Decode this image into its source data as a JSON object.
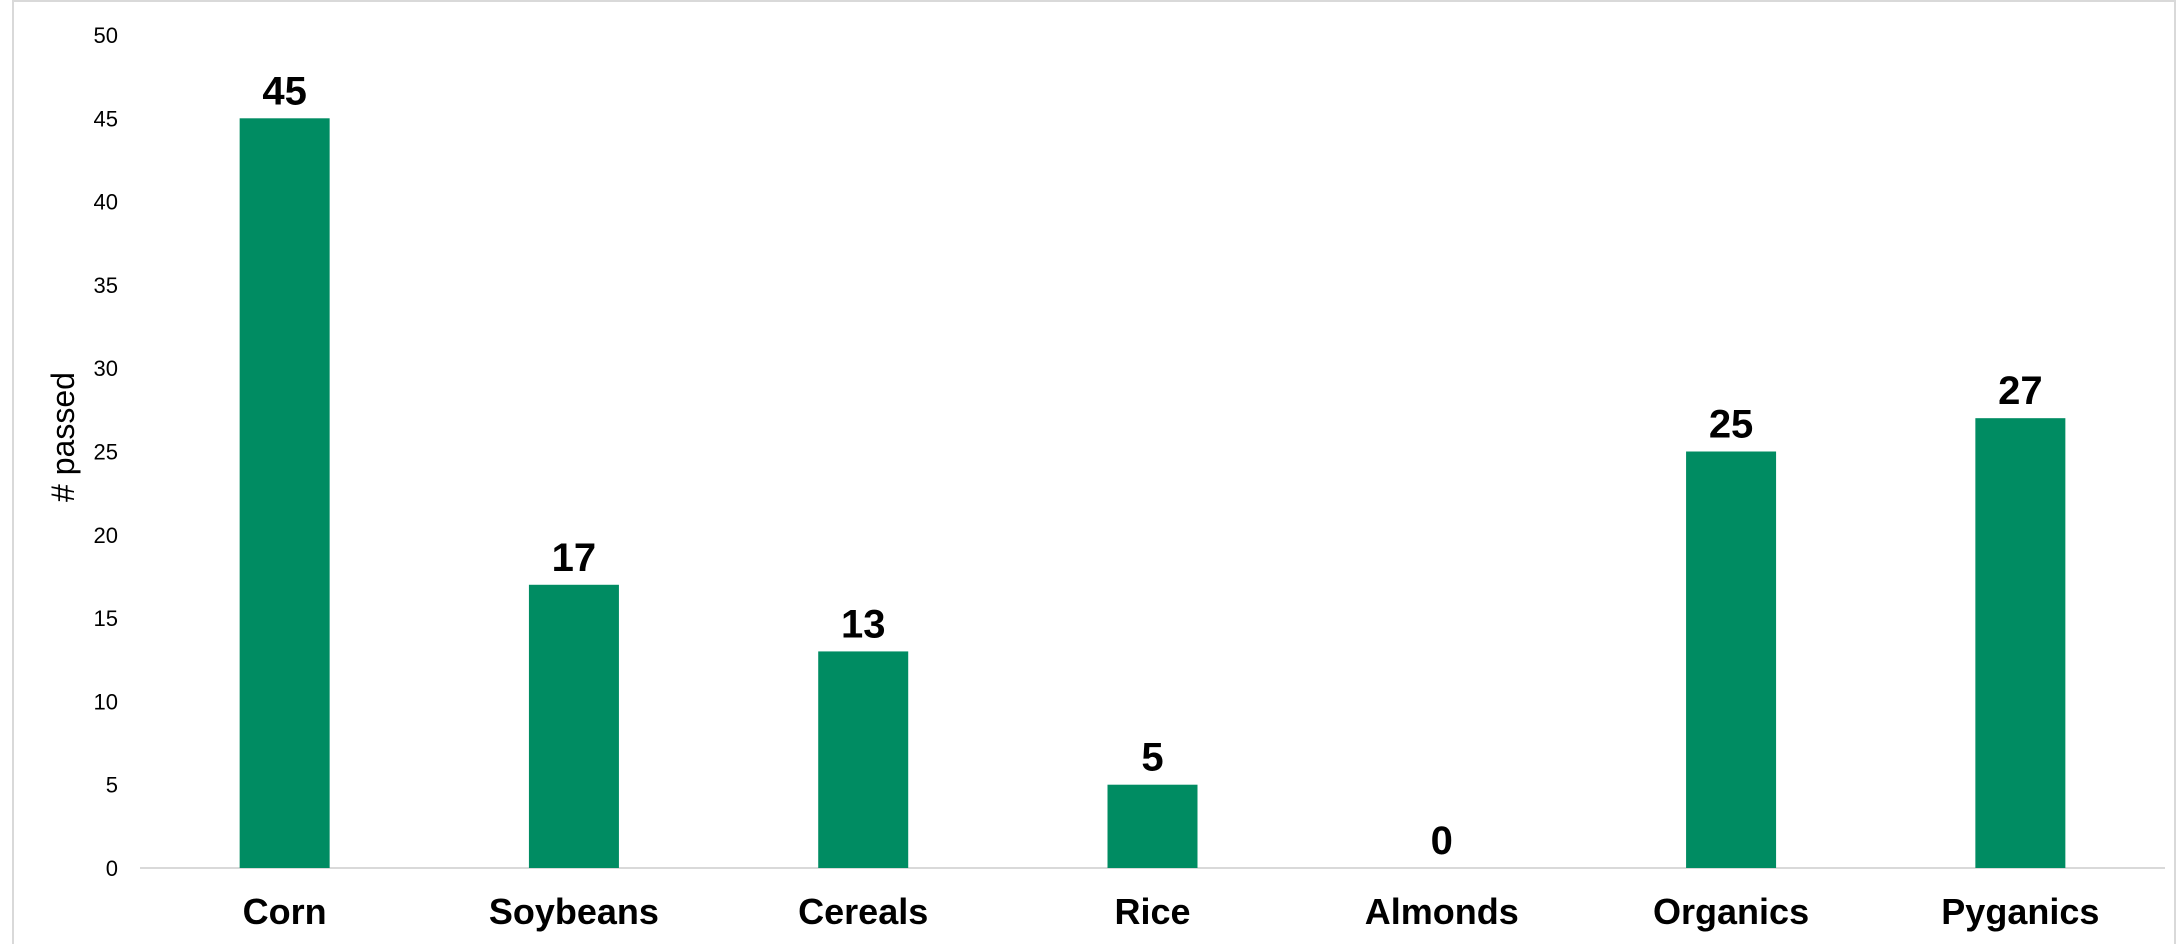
{
  "chart_data": {
    "type": "bar",
    "title": "",
    "xlabel": "",
    "ylabel": "# passed",
    "categories": [
      "Corn",
      "Soybeans",
      "Cereals",
      "Rice",
      "Almonds",
      "Organics",
      "Pyganics"
    ],
    "values": [
      45,
      17,
      13,
      5,
      0,
      25,
      27
    ],
    "ylim": [
      0,
      50
    ],
    "yticks": [
      0,
      5,
      10,
      15,
      20,
      25,
      30,
      35,
      40,
      45,
      50
    ],
    "grid": false,
    "legend": "none",
    "data_labels": true,
    "bar_color": "#008c62",
    "axis_color": "#d9d9d9"
  }
}
